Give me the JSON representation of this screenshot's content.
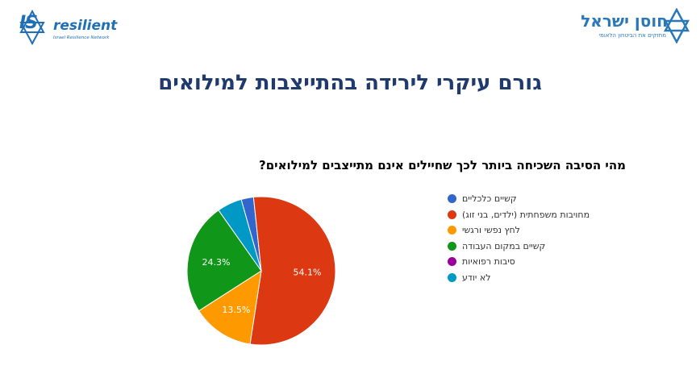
{
  "logos": {
    "left_mark": "IS",
    "left_name": "resilient",
    "left_sub": "Israel Resilience Network",
    "right_name": "חוסן ישראל",
    "right_tagline": "מחזקים את הביטחון הלאומי"
  },
  "slide_title": "גורם עיקרי לירידה בהתייצבות למילואים",
  "chart_data": {
    "type": "pie",
    "title": "מהי הסיבה השכיחה ביותר לכך שחיילים אינם מתייצבים למילואים?",
    "legend_position": "right",
    "slices": [
      {
        "name": "קשיים כלכליים",
        "value": 2.7,
        "label": "",
        "color": "#3366cc"
      },
      {
        "name": "מחויבות משפחתית (ילדים, בני זוג)",
        "value": 54.1,
        "label": "54.1%",
        "color": "#dc3912"
      },
      {
        "name": "לחץ נפשי ורגשי",
        "value": 13.5,
        "label": "13.5%",
        "color": "#ff9900"
      },
      {
        "name": "קשיים במקום העבודה",
        "value": 24.3,
        "label": "24.3%",
        "color": "#109618"
      },
      {
        "name": "סיבות רפואיות",
        "value": 0,
        "label": "",
        "color": "#990099"
      },
      {
        "name": "לא יודע",
        "value": 5.4,
        "label": "",
        "color": "#0099c6"
      }
    ]
  }
}
